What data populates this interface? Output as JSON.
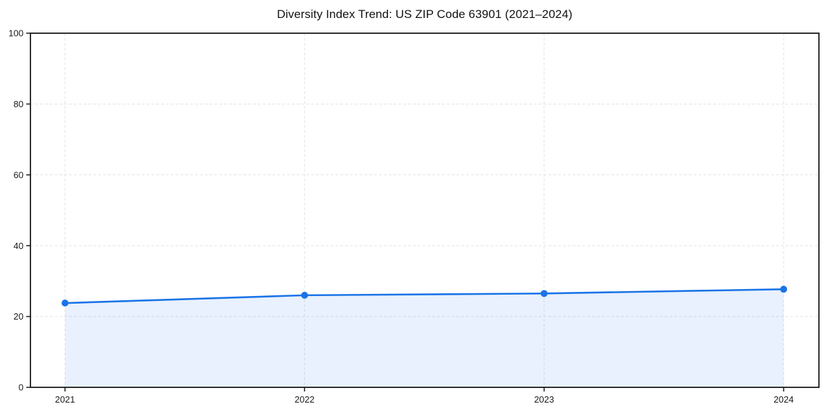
{
  "chart_data": {
    "type": "line",
    "title": "Diversity Index Trend: US ZIP Code 63901 (2021–2024)",
    "categories": [
      "2021",
      "2022",
      "2023",
      "2024"
    ],
    "series": [
      {
        "name": "Diversity Index",
        "values": [
          23.8,
          26.0,
          26.5,
          27.7
        ]
      }
    ],
    "xlabel": "",
    "ylabel": "",
    "ylim": [
      0,
      100
    ],
    "yticks": [
      0,
      20,
      40,
      60,
      80,
      100
    ],
    "grid": "dashed, horizontal and vertical",
    "legend_position": "none",
    "area_fill": true,
    "marker": "circle",
    "colors": {
      "line": "#1a73e8",
      "marker": "#1a73e8",
      "area": "rgba(26,115,232,0.10)",
      "grid": "#e3e3e3",
      "spine": "#1a1a1a",
      "tick_label": "#1a1a1a",
      "background": "#ffffff"
    }
  }
}
